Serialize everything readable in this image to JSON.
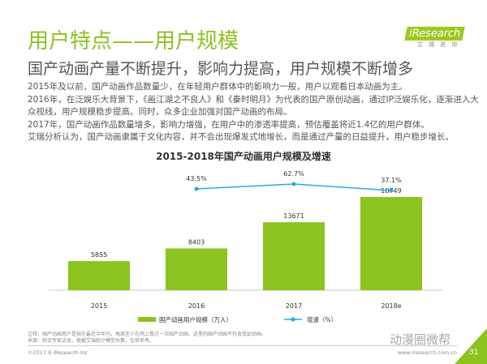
{
  "header": {
    "title": "用户特点——用户规模",
    "subtitle": "国产动画产量不断提升，影响力提高，用户规模不断增多"
  },
  "logo": {
    "brand": "iResearch",
    "cn": "艾瑞咨询"
  },
  "body": [
    "2015年及以前，国产动画作品数量少，在年轻用户群体中的影响力一般，用户以观看日本动画为主。",
    "2016年，在泛娱乐大背景下，《画江湖之不良人》和《秦时明月》为代表的国产原创动画，通过IP泛娱乐化，逐渐进入大众视线，用户规模稳步提高。同时，众多企业加强对国产动画的布局。",
    "2017年，国产动画作品数量增多，影响力增强，在用户中的渗透率提高，预估覆盖将近1.4亿的用户群体。",
    "艾瑞分析认为，国产动画隶属于文化内容，并不会出现爆发式地增长，而是通过产量的日益提升，用户稳步增长。"
  ],
  "chart_data": {
    "type": "bar",
    "title": "2015-2018年国产动画用户规模及增速",
    "categories": [
      "2015",
      "2016",
      "2017",
      "2018e"
    ],
    "series": [
      {
        "name": "国产动画用户规模（万人）",
        "type": "bar",
        "values": [
          5855,
          8403,
          13671,
          18749
        ],
        "color": "#8cc31f"
      },
      {
        "name": "增速（%）",
        "type": "line",
        "values": [
          null,
          43.5,
          62.7,
          37.1
        ],
        "labels": [
          "",
          "43.5%",
          "62.7%",
          "37.1%"
        ],
        "color": "#29a9e1"
      }
    ],
    "legend": "bottom"
  },
  "footer": {
    "note": "注释：国产动画用户是指在最近半年内，每周至少在网上看过一次国产动画，这里的国产动画不包含低幼动画。",
    "source": "来源：综合专家访谈，根据艾瑞统计模型估算，仅供参考。",
    "copyright": "©2017.8 iResearch Inc",
    "site": "www.iresearch.com.cn",
    "watermark": "动漫圈微帮",
    "page": "31"
  }
}
